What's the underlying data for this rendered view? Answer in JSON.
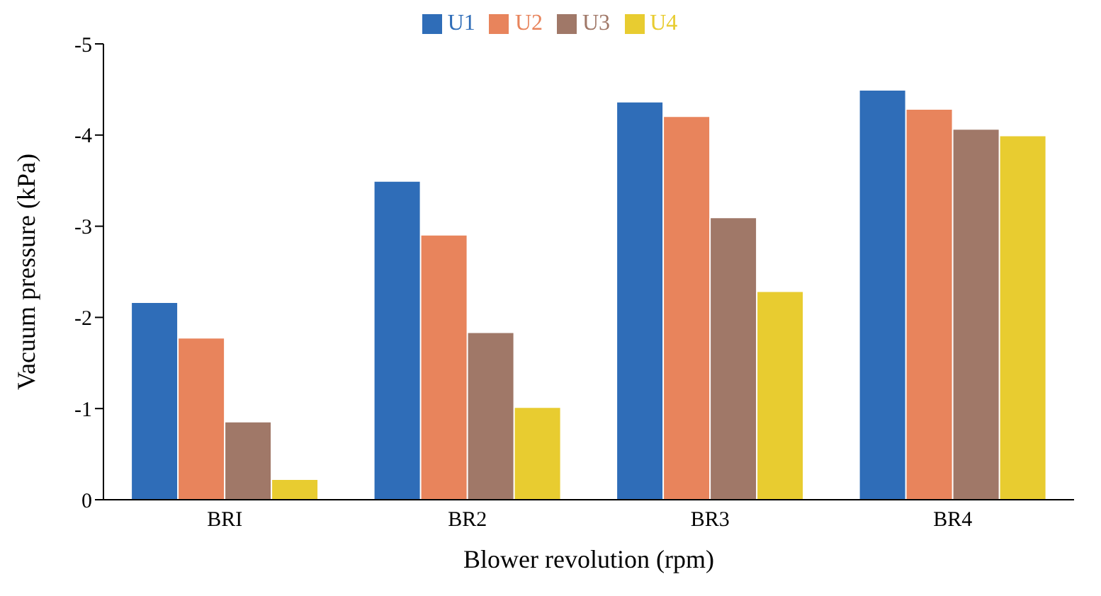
{
  "chart_data": {
    "type": "bar",
    "xlabel": "Blower revolution (rpm)",
    "ylabel": "Vacuum pressure (kPa)",
    "categories": [
      "BRI",
      "BR2",
      "BR3",
      "BR4"
    ],
    "series": [
      {
        "name": "U1",
        "color": "#2f6db8",
        "values": [
          -2.15,
          -3.48,
          -4.35,
          -4.48
        ]
      },
      {
        "name": "U2",
        "color": "#e8845c",
        "values": [
          -1.76,
          -2.89,
          -4.19,
          -4.27
        ]
      },
      {
        "name": "U3",
        "color": "#a07868",
        "values": [
          -0.84,
          -1.82,
          -3.08,
          -4.05
        ]
      },
      {
        "name": "U4",
        "color": "#e8cc30",
        "values": [
          -0.21,
          -1.0,
          -2.27,
          -3.98
        ]
      }
    ],
    "ylim": [
      0,
      -5
    ],
    "yticks": [
      0,
      -1,
      -2,
      -3,
      -4,
      -5
    ],
    "grid": false,
    "legend": "top"
  }
}
